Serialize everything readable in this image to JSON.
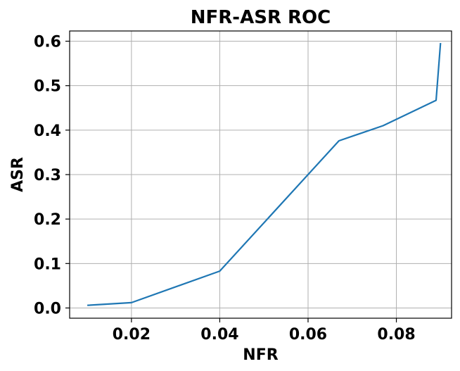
{
  "chart_data": {
    "type": "line",
    "title": "NFR-ASR ROC",
    "xlabel": "NFR",
    "ylabel": "ASR",
    "xlim": [
      0.006,
      0.0925
    ],
    "ylim": [
      -0.023,
      0.623
    ],
    "xticks": [
      0.02,
      0.04,
      0.06,
      0.08
    ],
    "xtick_labels": [
      "0.02",
      "0.04",
      "0.06",
      "0.08"
    ],
    "yticks": [
      0.0,
      0.1,
      0.2,
      0.3,
      0.4,
      0.5,
      0.6
    ],
    "ytick_labels": [
      "0.0",
      "0.1",
      "0.2",
      "0.3",
      "0.4",
      "0.5",
      "0.6"
    ],
    "grid": true,
    "series": [
      {
        "color": "#1f77b4",
        "x": [
          0.01,
          0.02,
          0.04,
          0.067,
          0.077,
          0.089,
          0.09
        ],
        "y": [
          0.006,
          0.012,
          0.083,
          0.376,
          0.41,
          0.467,
          0.596
        ]
      }
    ]
  }
}
